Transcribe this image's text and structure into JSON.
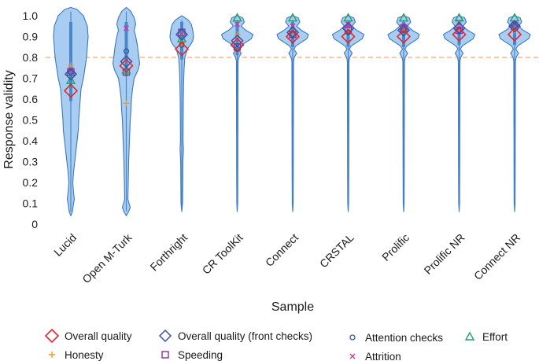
{
  "chart_data": {
    "type": "violin",
    "xlabel": "Sample",
    "ylabel": "Response validity",
    "ylim": [
      0,
      1.0
    ],
    "yticks": [
      "0",
      "0.1",
      "0.2",
      "0.3",
      "0.4",
      "0.5",
      "0.6",
      "0.7",
      "0.8",
      "0.9",
      "1.0"
    ],
    "ytick_values": [
      0,
      0.1,
      0.2,
      0.3,
      0.4,
      0.5,
      0.6,
      0.7,
      0.8,
      0.9,
      1.0
    ],
    "categories": [
      "Lucid",
      "Open M-Turk",
      "Forthright",
      "CR ToolKit",
      "Connect",
      "CRSTAL",
      "Prolific",
      "Prolific NR",
      "Connect NR"
    ],
    "reference_line": {
      "y": 0.8,
      "style": "dashed",
      "color": "#f4a582"
    },
    "colors": {
      "violin_fill": "#a8cdf0",
      "violin_edge": "#3a78c0",
      "box": "#4a86c8",
      "overall_quality": "#e0282e",
      "overall_quality_front": "#3b4fa8",
      "attention_checks": "#2a5e9e",
      "effort": "#22a06b",
      "honesty": "#f59a23",
      "speeding": "#9b2a9e",
      "attrition": "#d8329a"
    },
    "violins": [
      {
        "category": "Lucid",
        "min": 0.04,
        "max": 1.04,
        "shape": "lucid"
      },
      {
        "category": "Open M-Turk",
        "min": 0.04,
        "max": 1.04,
        "shape": "mturk"
      },
      {
        "category": "Forthright",
        "min": 0.06,
        "max": 1.0,
        "shape": "forthright"
      },
      {
        "category": "CR ToolKit",
        "min": 0.06,
        "max": 1.0,
        "shape": "top"
      },
      {
        "category": "Connect",
        "min": 0.06,
        "max": 1.0,
        "shape": "top"
      },
      {
        "category": "CRSTAL",
        "min": 0.06,
        "max": 1.0,
        "shape": "top"
      },
      {
        "category": "Prolific",
        "min": 0.06,
        "max": 1.0,
        "shape": "top"
      },
      {
        "category": "Prolific NR",
        "min": 0.06,
        "max": 1.0,
        "shape": "top"
      },
      {
        "category": "Connect NR",
        "min": 0.06,
        "max": 1.0,
        "shape": "top"
      }
    ],
    "series": [
      {
        "name": "Overall quality",
        "marker": "diamond",
        "values": [
          0.64,
          0.76,
          0.84,
          0.86,
          0.9,
          0.9,
          0.9,
          0.91,
          0.91
        ]
      },
      {
        "name": "Overall quality (front checks)",
        "marker": "diamond-open",
        "values": [
          0.72,
          0.78,
          0.91,
          0.88,
          0.92,
          0.94,
          0.93,
          0.94,
          0.95
        ]
      },
      {
        "name": "Attention checks",
        "marker": "circle",
        "values": [
          0.73,
          0.83,
          0.86,
          0.84,
          0.91,
          0.92,
          0.93,
          0.93,
          0.95
        ]
      },
      {
        "name": "Effort",
        "marker": "triangle",
        "values": [
          0.69,
          0.74,
          0.89,
          0.99,
          0.99,
          0.99,
          0.99,
          0.99,
          0.99
        ]
      },
      {
        "name": "Honesty",
        "marker": "plus",
        "values": [
          0.76,
          0.58,
          0.87,
          0.91,
          0.92,
          0.93,
          0.93,
          0.94,
          0.93
        ]
      },
      {
        "name": "Speeding",
        "marker": "square",
        "values": [
          0.73,
          0.73,
          0.92,
          0.85,
          0.91,
          0.93,
          0.94,
          0.93,
          0.95
        ]
      },
      {
        "name": "Attrition",
        "marker": "x",
        "values": [
          0.74,
          0.94,
          0.91,
          0.96,
          0.95,
          0.96,
          0.95,
          0.97,
          0.96
        ]
      }
    ],
    "legend": {
      "placement": "bottom",
      "entries": [
        {
          "label": "Overall quality",
          "marker": "diamond"
        },
        {
          "label": "Overall quality (front checks)",
          "marker": "diamond-open"
        },
        {
          "label": "Attention checks",
          "marker": "circle"
        },
        {
          "label": "Effort",
          "marker": "triangle"
        },
        {
          "label": "Honesty",
          "marker": "plus"
        },
        {
          "label": "Speeding",
          "marker": "square"
        },
        {
          "label": "Attrition",
          "marker": "x"
        }
      ]
    }
  }
}
